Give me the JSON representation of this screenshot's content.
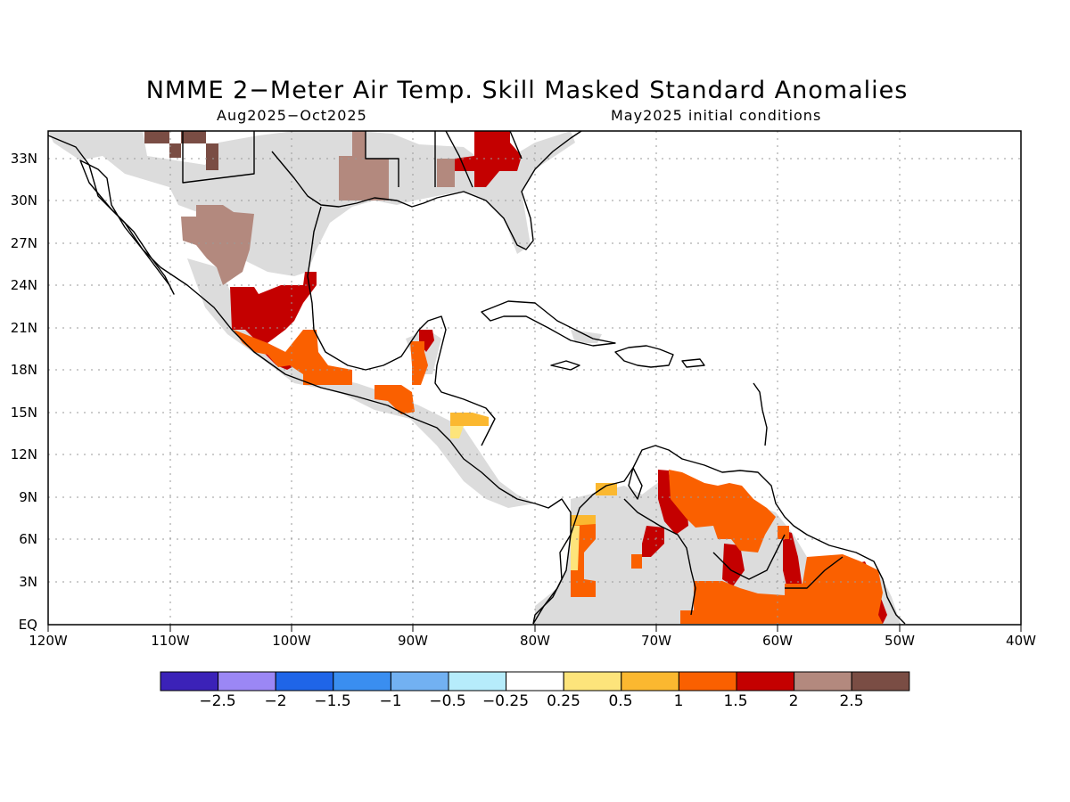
{
  "title": "NMME 2−Meter Air Temp. Skill Masked Standard Anomalies",
  "period": "Aug2025−Oct2025",
  "init": "May2025 initial conditions",
  "lat_labels": [
    "33N",
    "30N",
    "27N",
    "24N",
    "21N",
    "18N",
    "15N",
    "12N",
    "9N",
    "6N",
    "3N",
    "EQ"
  ],
  "lon_labels": [
    "120W",
    "110W",
    "100W",
    "90W",
    "80W",
    "70W",
    "60W",
    "50W",
    "40W"
  ],
  "colorbar": {
    "colors": [
      "#3b22b8",
      "#9b87f5",
      "#1f65e8",
      "#3a8ef0",
      "#72b1f2",
      "#b6ecfb",
      "#ffffff",
      "#fde47b",
      "#fbb830",
      "#fa6000",
      "#c40000",
      "#b3897e",
      "#7a4d44"
    ],
    "labels": [
      "−2.5",
      "−2",
      "−1.5",
      "−1",
      "−0.5",
      "−0.25",
      "0.25",
      "0.5",
      "1",
      "1.5",
      "2",
      "2.5"
    ]
  },
  "mask_color": "#dcdcdc"
}
